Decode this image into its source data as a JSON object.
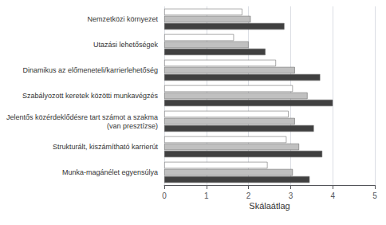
{
  "chart_data": {
    "type": "bar",
    "orientation": "horizontal",
    "categories": [
      "Nemzetközi környezet",
      "Utazási lehetőségek",
      "Dinamikus az előmeneteli/karrierlehetőség",
      "Szabályozott keretek közötti munkavégzés",
      "Jelentős közérdeklődésre tart számot a szakma\n(van presztízse)",
      "Strukturált, kiszámítható karrierút",
      "Munka-magánélet egyensúlya"
    ],
    "series": [
      {
        "color": "#ffffff",
        "values": [
          1.85,
          1.65,
          2.65,
          3.05,
          2.95,
          2.9,
          2.45
        ]
      },
      {
        "color": "#c0c0c0",
        "values": [
          2.05,
          2.0,
          3.1,
          3.4,
          3.1,
          3.2,
          3.05
        ]
      },
      {
        "color": "#404040",
        "values": [
          2.85,
          2.4,
          3.7,
          4.0,
          3.55,
          3.75,
          3.45
        ]
      }
    ],
    "xlabel": "Skálaátlag",
    "xlim": [
      0,
      5
    ],
    "xticks": [
      0,
      1,
      2,
      3,
      4,
      5
    ],
    "grid": true
  }
}
